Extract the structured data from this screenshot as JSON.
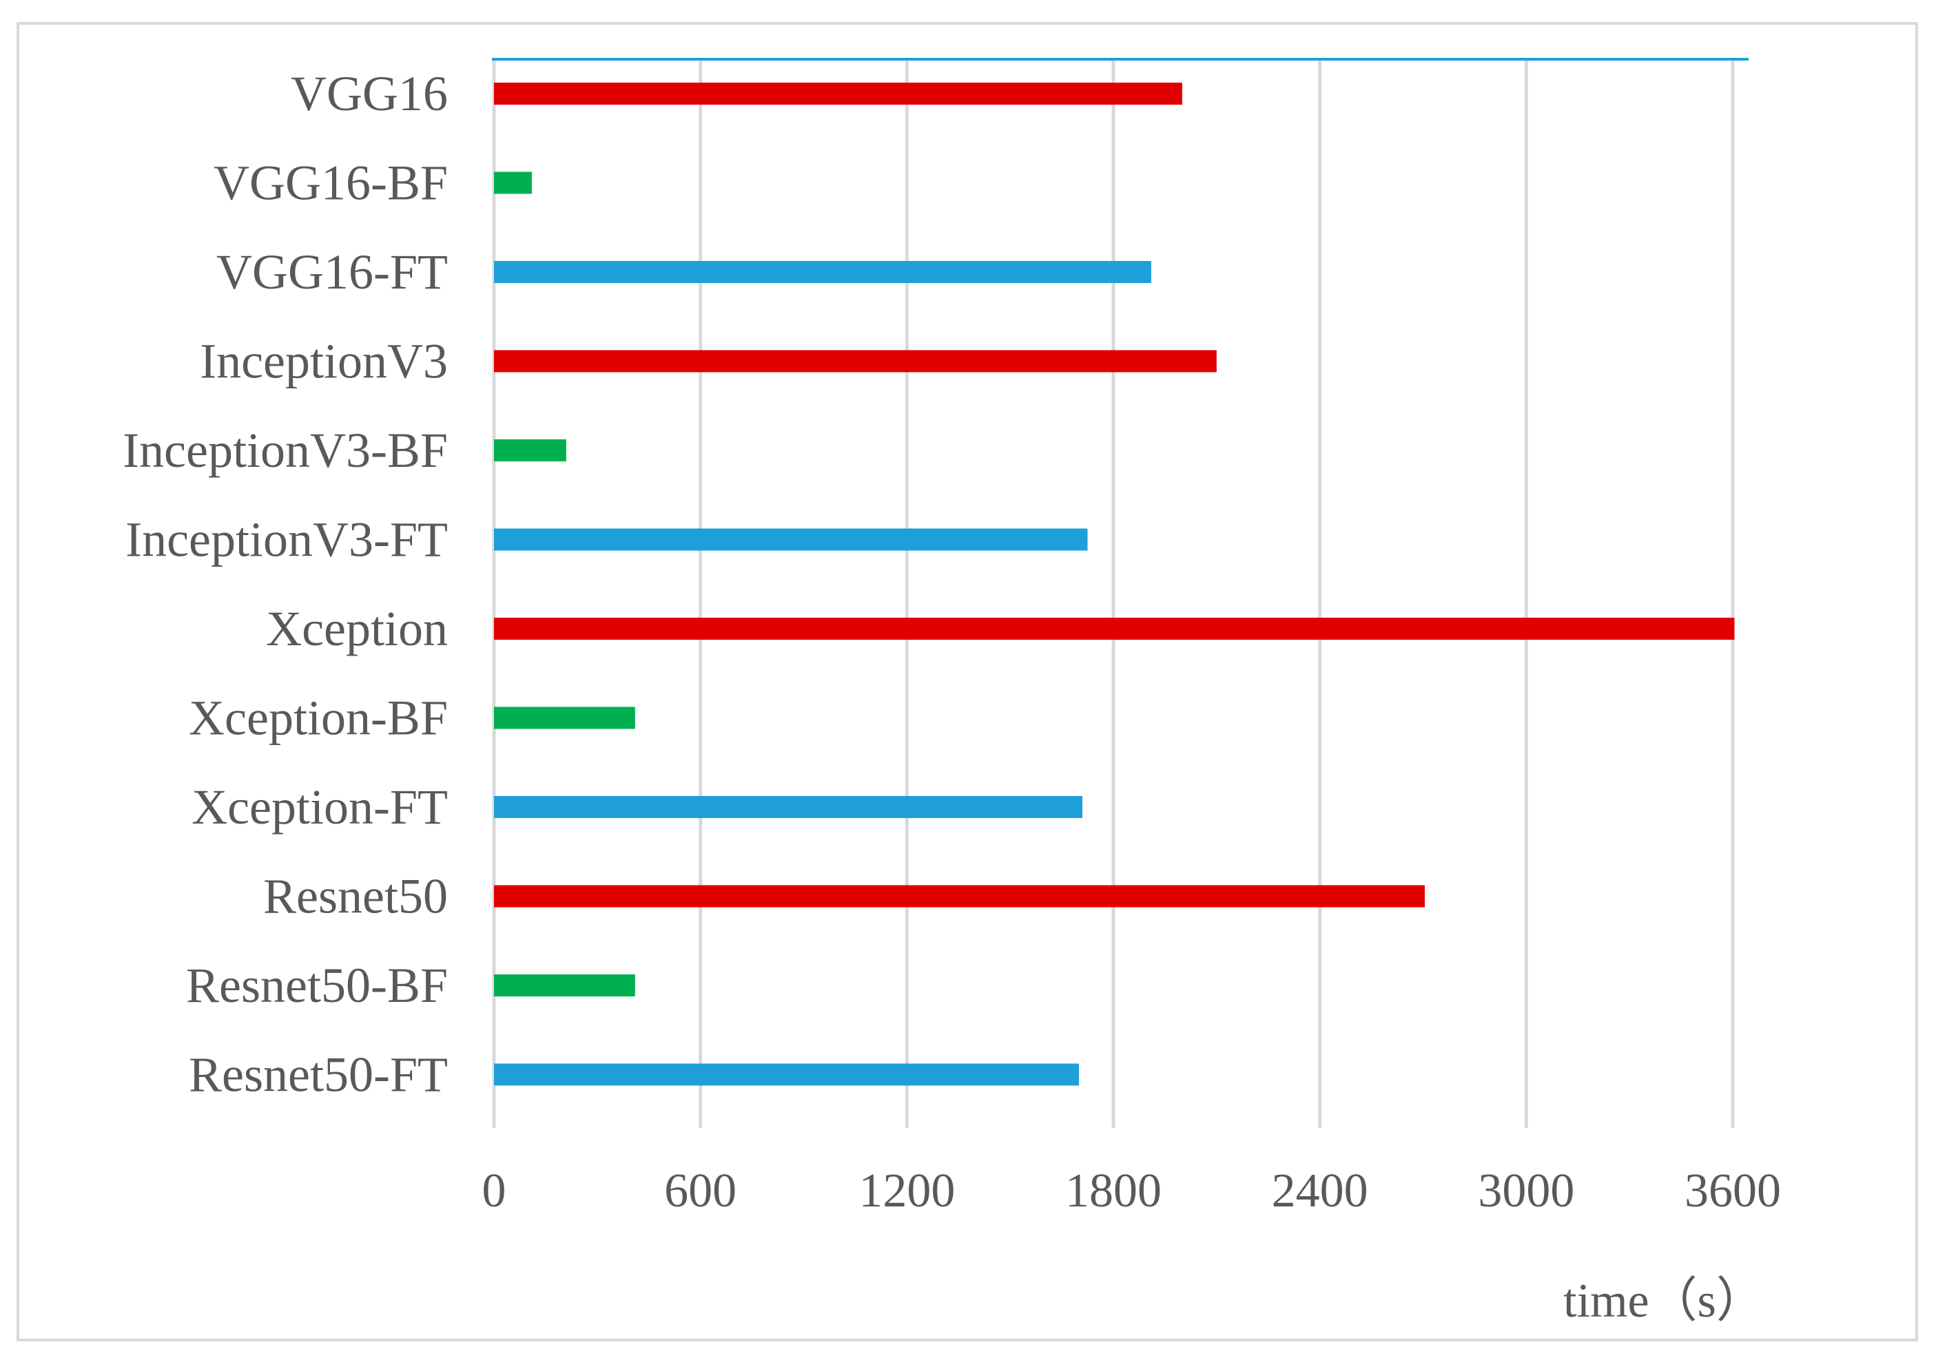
{
  "chart_data": {
    "type": "bar",
    "orientation": "horizontal",
    "categories": [
      "VGG16",
      "VGG16-BF",
      "VGG16-FT",
      "InceptionV3",
      "InceptionV3-BF",
      "InceptionV3-FT",
      "Xception",
      "Xception-BF",
      "Xception-FT",
      "Resnet50",
      "Resnet50-BF",
      "Resnet50-FT"
    ],
    "values": [
      2000,
      110,
      1910,
      2100,
      210,
      1725,
      3605,
      410,
      1710,
      2705,
      410,
      1700
    ],
    "bar_colors": [
      "#e00000",
      "#00b050",
      "#1f9fda",
      "#e00000",
      "#00b050",
      "#1f9fda",
      "#e00000",
      "#00b050",
      "#1f9fda",
      "#e00000",
      "#00b050",
      "#1f9fda"
    ],
    "xticks": [
      "0",
      "600",
      "1200",
      "1800",
      "2400",
      "3000",
      "3600"
    ],
    "xlim": [
      0,
      3600
    ],
    "xlabel": "time（s）",
    "ylabel": "",
    "title": "",
    "grid": "vertical",
    "legend": "none",
    "colors": {
      "gridline": "#d9d9d9",
      "text": "#595959",
      "top_line": "#1f9fda",
      "frame": "#d9d9d9"
    }
  }
}
